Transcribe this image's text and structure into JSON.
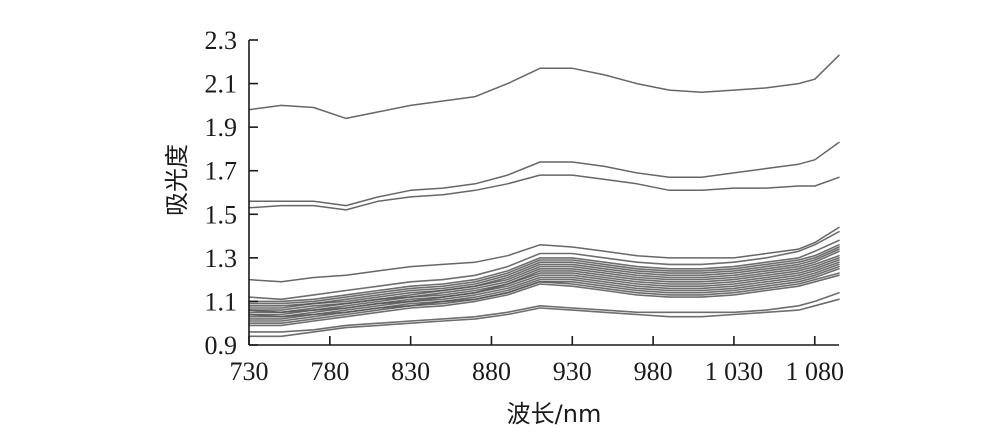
{
  "chart_data": {
    "type": "line",
    "xlabel": "波长/nm",
    "ylabel": "吸光度",
    "xlim": [
      730,
      1095
    ],
    "ylim": [
      0.9,
      2.3
    ],
    "x_ticks": [
      730,
      780,
      830,
      880,
      930,
      980,
      1030,
      1080
    ],
    "x_tick_labels": [
      "730",
      "780",
      "830",
      "880",
      "930",
      "980",
      "1 030",
      "1 080"
    ],
    "y_ticks": [
      0.9,
      1.1,
      1.3,
      1.5,
      1.7,
      1.9,
      2.1,
      2.3
    ],
    "y_tick_labels": [
      "0.9",
      "1.1",
      "1.3",
      "1.5",
      "1.7",
      "1.9",
      "2.1",
      "2.3"
    ],
    "grid": false,
    "x": [
      730,
      750,
      770,
      790,
      810,
      830,
      850,
      870,
      890,
      910,
      930,
      950,
      970,
      990,
      1010,
      1030,
      1050,
      1070,
      1080,
      1095
    ],
    "series_color": "#555555",
    "series": [
      {
        "values": [
          1.98,
          2.0,
          1.99,
          1.94,
          1.97,
          2.0,
          2.02,
          2.04,
          2.1,
          2.17,
          2.17,
          2.14,
          2.1,
          2.07,
          2.06,
          2.07,
          2.08,
          2.1,
          2.12,
          2.23
        ]
      },
      {
        "values": [
          1.56,
          1.56,
          1.56,
          1.54,
          1.58,
          1.61,
          1.62,
          1.64,
          1.68,
          1.74,
          1.74,
          1.72,
          1.69,
          1.67,
          1.67,
          1.69,
          1.71,
          1.73,
          1.75,
          1.83
        ]
      },
      {
        "values": [
          1.53,
          1.54,
          1.54,
          1.52,
          1.56,
          1.58,
          1.59,
          1.61,
          1.64,
          1.68,
          1.68,
          1.66,
          1.64,
          1.61,
          1.61,
          1.62,
          1.62,
          1.63,
          1.63,
          1.67
        ]
      },
      {
        "values": [
          1.2,
          1.19,
          1.21,
          1.22,
          1.24,
          1.26,
          1.27,
          1.28,
          1.31,
          1.36,
          1.35,
          1.33,
          1.31,
          1.3,
          1.3,
          1.3,
          1.32,
          1.34,
          1.37,
          1.44
        ]
      },
      {
        "values": [
          1.12,
          1.11,
          1.13,
          1.15,
          1.17,
          1.19,
          1.2,
          1.22,
          1.26,
          1.32,
          1.32,
          1.3,
          1.28,
          1.27,
          1.27,
          1.28,
          1.3,
          1.33,
          1.36,
          1.42
        ]
      },
      {
        "values": [
          1.1,
          1.1,
          1.11,
          1.13,
          1.15,
          1.17,
          1.18,
          1.2,
          1.24,
          1.3,
          1.3,
          1.28,
          1.26,
          1.25,
          1.25,
          1.26,
          1.28,
          1.3,
          1.33,
          1.38
        ]
      },
      {
        "values": [
          1.09,
          1.09,
          1.1,
          1.12,
          1.14,
          1.16,
          1.17,
          1.19,
          1.23,
          1.29,
          1.29,
          1.27,
          1.25,
          1.24,
          1.24,
          1.25,
          1.27,
          1.29,
          1.31,
          1.36
        ]
      },
      {
        "values": [
          1.08,
          1.08,
          1.09,
          1.11,
          1.13,
          1.15,
          1.16,
          1.18,
          1.22,
          1.28,
          1.28,
          1.26,
          1.24,
          1.23,
          1.23,
          1.24,
          1.26,
          1.28,
          1.3,
          1.35
        ]
      },
      {
        "values": [
          1.07,
          1.07,
          1.09,
          1.1,
          1.12,
          1.14,
          1.15,
          1.17,
          1.21,
          1.27,
          1.27,
          1.25,
          1.23,
          1.22,
          1.22,
          1.23,
          1.25,
          1.27,
          1.29,
          1.34
        ]
      },
      {
        "values": [
          1.06,
          1.06,
          1.08,
          1.09,
          1.11,
          1.13,
          1.15,
          1.17,
          1.2,
          1.26,
          1.26,
          1.24,
          1.22,
          1.21,
          1.21,
          1.22,
          1.24,
          1.26,
          1.28,
          1.33
        ]
      },
      {
        "values": [
          1.06,
          1.05,
          1.07,
          1.09,
          1.11,
          1.12,
          1.14,
          1.16,
          1.19,
          1.25,
          1.25,
          1.23,
          1.21,
          1.2,
          1.2,
          1.21,
          1.23,
          1.25,
          1.27,
          1.31
        ]
      },
      {
        "values": [
          1.05,
          1.05,
          1.06,
          1.08,
          1.1,
          1.12,
          1.13,
          1.15,
          1.18,
          1.24,
          1.24,
          1.22,
          1.2,
          1.19,
          1.19,
          1.2,
          1.22,
          1.24,
          1.26,
          1.3
        ]
      },
      {
        "values": [
          1.04,
          1.04,
          1.06,
          1.07,
          1.09,
          1.11,
          1.12,
          1.14,
          1.18,
          1.23,
          1.23,
          1.21,
          1.19,
          1.18,
          1.18,
          1.19,
          1.21,
          1.23,
          1.25,
          1.29
        ]
      },
      {
        "values": [
          1.04,
          1.03,
          1.05,
          1.07,
          1.09,
          1.1,
          1.12,
          1.14,
          1.17,
          1.22,
          1.22,
          1.2,
          1.18,
          1.17,
          1.17,
          1.18,
          1.2,
          1.22,
          1.24,
          1.28
        ]
      },
      {
        "values": [
          1.03,
          1.03,
          1.04,
          1.06,
          1.08,
          1.1,
          1.11,
          1.13,
          1.16,
          1.21,
          1.21,
          1.19,
          1.17,
          1.16,
          1.16,
          1.17,
          1.19,
          1.21,
          1.23,
          1.27
        ]
      },
      {
        "values": [
          1.02,
          1.02,
          1.04,
          1.05,
          1.07,
          1.09,
          1.1,
          1.12,
          1.15,
          1.2,
          1.2,
          1.18,
          1.16,
          1.15,
          1.15,
          1.16,
          1.18,
          1.2,
          1.22,
          1.26
        ]
      },
      {
        "values": [
          1.01,
          1.01,
          1.03,
          1.05,
          1.07,
          1.08,
          1.1,
          1.11,
          1.14,
          1.19,
          1.19,
          1.17,
          1.15,
          1.14,
          1.14,
          1.15,
          1.17,
          1.19,
          1.21,
          1.25
        ]
      },
      {
        "values": [
          1.0,
          1.0,
          1.02,
          1.04,
          1.06,
          1.08,
          1.09,
          1.11,
          1.14,
          1.19,
          1.18,
          1.16,
          1.14,
          1.13,
          1.13,
          1.14,
          1.16,
          1.18,
          1.2,
          1.23
        ]
      },
      {
        "values": [
          0.99,
          0.99,
          1.01,
          1.03,
          1.05,
          1.07,
          1.08,
          1.1,
          1.13,
          1.18,
          1.17,
          1.15,
          1.13,
          1.12,
          1.12,
          1.13,
          1.15,
          1.17,
          1.19,
          1.22
        ]
      },
      {
        "values": [
          0.96,
          0.96,
          0.97,
          0.99,
          1.0,
          1.01,
          1.02,
          1.03,
          1.05,
          1.08,
          1.07,
          1.06,
          1.05,
          1.05,
          1.05,
          1.05,
          1.06,
          1.08,
          1.1,
          1.14
        ]
      },
      {
        "values": [
          0.94,
          0.94,
          0.96,
          0.98,
          0.99,
          1.0,
          1.01,
          1.02,
          1.04,
          1.07,
          1.06,
          1.05,
          1.04,
          1.03,
          1.03,
          1.04,
          1.05,
          1.06,
          1.08,
          1.11
        ]
      }
    ]
  }
}
